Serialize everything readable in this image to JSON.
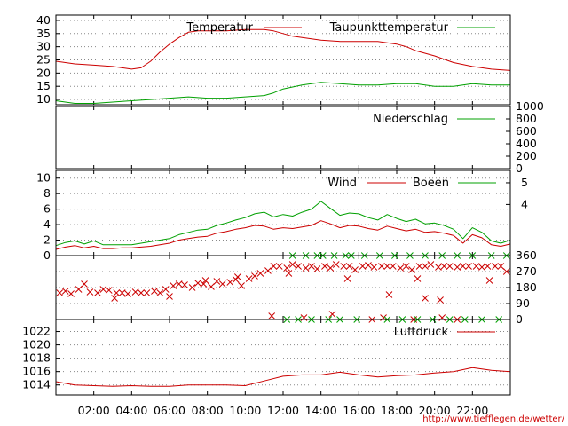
{
  "colors": {
    "series_primary": "#cc0000",
    "series_secondary": "#00a000",
    "grid": "#888888",
    "frame": "#000000",
    "source_link": "#cc0000"
  },
  "source_url": "http://www.tiefflegen.de/wetter/",
  "chart_data": [
    {
      "id": "temperature",
      "type": "line",
      "x_range_hours": [
        0,
        24
      ],
      "x_tick_labels": [
        "02:00",
        "04:00",
        "06:00",
        "08:00",
        "10:00",
        "12:00",
        "14:00",
        "16:00",
        "18:00",
        "20:00",
        "22:00"
      ],
      "ylim": [
        8,
        42
      ],
      "y_ticks": [
        10,
        15,
        20,
        25,
        30,
        35,
        40
      ],
      "grid": true,
      "legend_placement": "top-right",
      "series": [
        {
          "name": "Temperatur",
          "color_key": "series_primary",
          "x": [
            0,
            1,
            2,
            3,
            3.5,
            4,
            4.5,
            5,
            5.5,
            6,
            6.5,
            7,
            7.5,
            8,
            9,
            10,
            10.5,
            11,
            11.5,
            12,
            12.5,
            13,
            14,
            15,
            16,
            17,
            17.5,
            18,
            18.5,
            19,
            20,
            21,
            22,
            23,
            24
          ],
          "y": [
            24.5,
            23.5,
            23,
            22.5,
            22,
            21.5,
            22,
            24.5,
            28,
            31,
            33.5,
            35.5,
            36,
            36,
            36,
            36.5,
            36.5,
            36.5,
            36,
            35,
            34,
            33.5,
            32.5,
            32,
            32,
            32,
            31.5,
            31,
            30,
            28.5,
            26.5,
            24,
            22.5,
            21.5,
            21
          ]
        },
        {
          "name": "Taupunkttemperatur",
          "color_key": "series_secondary",
          "x": [
            0,
            1,
            2,
            3,
            4,
            5,
            6,
            7,
            8,
            9,
            10,
            11,
            11.5,
            12,
            13,
            13.5,
            14,
            15,
            16,
            17,
            18,
            19,
            20,
            21,
            22,
            23,
            24
          ],
          "y": [
            9.5,
            8.5,
            8.5,
            9,
            9.5,
            10,
            10.5,
            11,
            10.5,
            10.5,
            11,
            11.5,
            12.5,
            14,
            15.5,
            16,
            16.5,
            16,
            15.5,
            15.5,
            16,
            16,
            15,
            15,
            16,
            15.5,
            15.5
          ]
        }
      ]
    },
    {
      "id": "precipitation",
      "type": "line",
      "x_range_hours": [
        0,
        24
      ],
      "ylim": [
        0,
        1000
      ],
      "y_ticks": [
        0,
        200,
        400,
        600,
        800,
        1000
      ],
      "y_axis_side": "right",
      "grid": false,
      "legend_placement": "top-right",
      "series": [
        {
          "name": "Niederschlag",
          "color_key": "series_secondary",
          "x": [
            0,
            24
          ],
          "y": [
            0,
            0
          ]
        }
      ]
    },
    {
      "id": "wind",
      "type": "line",
      "x_range_hours": [
        0,
        24
      ],
      "ylim": [
        0,
        11
      ],
      "y_ticks": [
        0,
        2,
        4,
        6,
        8,
        10
      ],
      "right_axis_labels": [
        {
          "text": "5",
          "at": 9.4
        },
        {
          "text": "4",
          "at": 6.6
        }
      ],
      "grid": true,
      "legend_placement": "top-right",
      "series": [
        {
          "name": "Wind",
          "color_key": "series_primary",
          "x": [
            0,
            0.5,
            1,
            1.5,
            2,
            2.5,
            3,
            3.5,
            4,
            4.5,
            5,
            5.5,
            6,
            6.5,
            7,
            7.5,
            8,
            8.5,
            9,
            9.5,
            10,
            10.5,
            11,
            11.5,
            12,
            12.5,
            13,
            13.5,
            14,
            14.5,
            15,
            15.5,
            16,
            16.5,
            17,
            17.5,
            18,
            18.5,
            19,
            19.5,
            20,
            20.5,
            21,
            21.5,
            22,
            22.5,
            23,
            23.5,
            24
          ],
          "y": [
            0.8,
            1.1,
            1.3,
            1.0,
            1.2,
            0.9,
            0.9,
            1.0,
            1.0,
            1.1,
            1.2,
            1.4,
            1.6,
            2.0,
            2.2,
            2.4,
            2.5,
            2.9,
            3.1,
            3.4,
            3.6,
            3.9,
            3.8,
            3.4,
            3.6,
            3.5,
            3.7,
            3.9,
            4.5,
            4.1,
            3.6,
            3.9,
            3.8,
            3.5,
            3.3,
            3.8,
            3.5,
            3.2,
            3.4,
            3.0,
            3.1,
            2.9,
            2.6,
            1.6,
            2.7,
            2.3,
            1.4,
            1.2,
            1.5
          ]
        },
        {
          "name": "Boeen",
          "color_key": "series_secondary",
          "x": [
            0,
            0.5,
            1,
            1.5,
            2,
            2.5,
            3,
            3.5,
            4,
            4.5,
            5,
            5.5,
            6,
            6.5,
            7,
            7.5,
            8,
            8.5,
            9,
            9.5,
            10,
            10.5,
            11,
            11.5,
            12,
            12.5,
            13,
            13.5,
            14,
            14.5,
            15,
            15.5,
            16,
            16.5,
            17,
            17.5,
            18,
            18.5,
            19,
            19.5,
            20,
            20.5,
            21,
            21.5,
            22,
            22.5,
            23,
            23.5,
            24
          ],
          "y": [
            1.3,
            1.7,
            1.9,
            1.5,
            1.9,
            1.4,
            1.4,
            1.4,
            1.4,
            1.6,
            1.8,
            2.0,
            2.2,
            2.7,
            3.0,
            3.3,
            3.4,
            3.9,
            4.2,
            4.6,
            4.9,
            5.4,
            5.6,
            5.0,
            5.3,
            5.1,
            5.6,
            6.0,
            7.0,
            6.1,
            5.2,
            5.5,
            5.4,
            4.9,
            4.6,
            5.3,
            4.8,
            4.4,
            4.7,
            4.1,
            4.2,
            3.9,
            3.4,
            2.2,
            3.6,
            3.0,
            1.9,
            1.6,
            2.0
          ]
        }
      ]
    },
    {
      "id": "wind_direction",
      "type": "scatter",
      "x_range_hours": [
        0,
        24
      ],
      "ylim": [
        0,
        360
      ],
      "y_ticks": [
        0,
        90,
        180,
        270,
        360
      ],
      "y_axis_side": "right",
      "grid": true,
      "marker": "x",
      "series": [
        {
          "name": "",
          "color_key": "series_primary",
          "x": [
            0.2,
            0.5,
            0.8,
            1.2,
            1.5,
            1.8,
            2.2,
            2.5,
            2.8,
            3.2,
            3.5,
            3.8,
            4.2,
            4.5,
            4.8,
            5.2,
            5.5,
            5.8,
            6.2,
            6.5,
            6.8,
            7.2,
            7.5,
            7.8,
            8.2,
            8.5,
            8.8,
            9.2,
            9.5,
            9.8,
            10.2,
            10.5,
            10.8,
            11.2,
            11.5,
            11.8,
            12.2,
            12.5,
            12.8,
            13.2,
            13.5,
            13.8,
            14.2,
            14.5,
            14.8,
            15.2,
            15.5,
            15.8,
            16.2,
            16.5,
            16.8,
            17.2,
            17.5,
            17.8,
            18.2,
            18.5,
            18.8,
            19.2,
            19.5,
            19.8,
            20.2,
            20.5,
            20.8,
            21.2,
            21.5,
            21.8,
            22.2,
            22.5,
            22.8,
            23.2,
            23.5,
            23.8,
            11.4,
            13.1,
            14.6,
            16.7,
            17.3,
            18.9,
            20.4,
            21.2,
            7.9,
            9.6,
            12.3,
            15.4,
            19.1,
            22.9,
            3.1,
            6.0,
            17.6,
            19.5,
            20.3
          ],
          "y": [
            150,
            160,
            145,
            170,
            200,
            155,
            150,
            170,
            165,
            150,
            150,
            145,
            155,
            150,
            150,
            160,
            150,
            170,
            190,
            200,
            195,
            180,
            205,
            200,
            185,
            215,
            200,
            210,
            225,
            190,
            230,
            245,
            260,
            275,
            300,
            300,
            290,
            310,
            300,
            290,
            300,
            285,
            300,
            290,
            310,
            300,
            300,
            280,
            300,
            305,
            295,
            300,
            300,
            300,
            290,
            300,
            280,
            300,
            300,
            310,
            295,
            300,
            300,
            295,
            300,
            300,
            300,
            295,
            300,
            300,
            300,
            270,
            20,
            10,
            30,
            0,
            10,
            0,
            10,
            0,
            220,
            240,
            260,
            230,
            230,
            220,
            120,
            130,
            140,
            120,
            110
          ]
        },
        {
          "name": "",
          "color_key": "series_secondary",
          "x": [
            12.2,
            12.5,
            12.8,
            13.2,
            13.5,
            13.8,
            14.1,
            14.4,
            14.7,
            15.0,
            15.3,
            15.6,
            15.9,
            16.3,
            17.1,
            17.5,
            17.9,
            18.3,
            18.7,
            19.1,
            19.5,
            19.9,
            20.4,
            20.8,
            21.2,
            21.6,
            22.0,
            22.5,
            23.0,
            23.4,
            23.8
          ],
          "y": [
            0,
            360,
            0,
            360,
            0,
            360,
            360,
            0,
            360,
            0,
            360,
            360,
            0,
            360,
            360,
            0,
            360,
            0,
            360,
            0,
            360,
            0,
            360,
            0,
            360,
            0,
            360,
            0,
            360,
            0,
            360
          ]
        }
      ]
    },
    {
      "id": "pressure",
      "type": "line",
      "x_range_hours": [
        0,
        24
      ],
      "ylim": [
        1012.5,
        1023.8
      ],
      "y_ticks": [
        1014,
        1016,
        1018,
        1020,
        1022
      ],
      "grid": true,
      "legend_placement": "top-right",
      "series": [
        {
          "name": "Luftdruck",
          "color_key": "series_primary",
          "x": [
            0,
            1,
            2,
            3,
            4,
            5,
            6,
            7,
            8,
            9,
            10,
            11,
            12,
            13,
            14,
            15,
            16,
            17,
            18,
            19,
            20,
            21,
            22,
            23,
            24
          ],
          "y": [
            1014.5,
            1014.0,
            1013.9,
            1013.8,
            1013.9,
            1013.8,
            1013.8,
            1014.0,
            1014.0,
            1014.0,
            1013.9,
            1014.6,
            1015.3,
            1015.5,
            1015.5,
            1015.9,
            1015.5,
            1015.2,
            1015.4,
            1015.5,
            1015.8,
            1016.0,
            1016.6,
            1016.2,
            1016.0
          ]
        }
      ]
    }
  ]
}
